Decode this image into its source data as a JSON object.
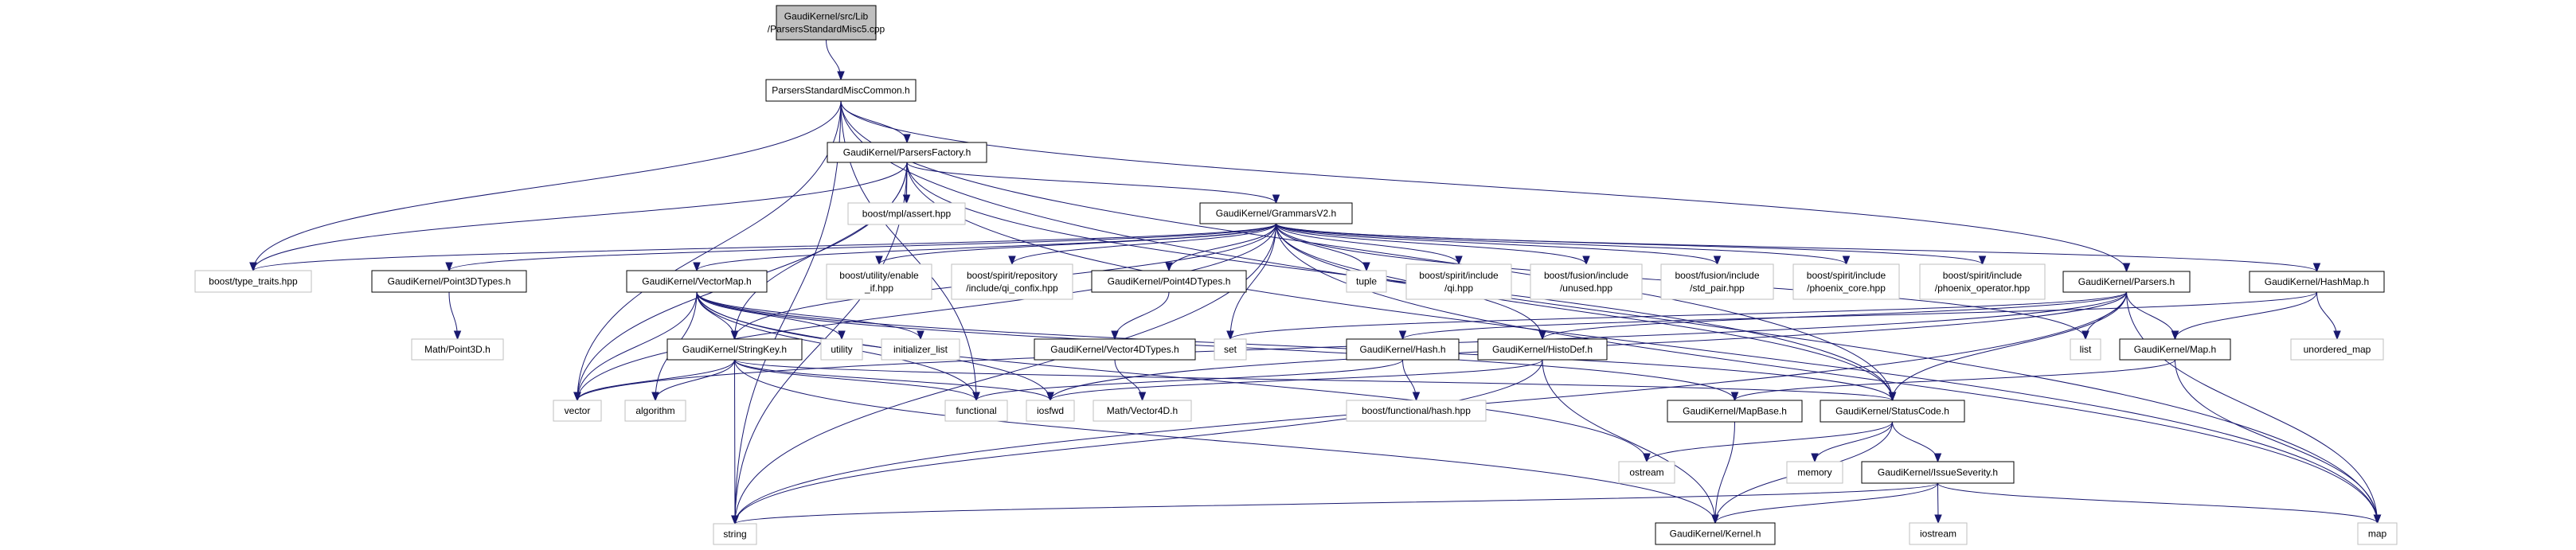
{
  "graph": {
    "edge_color": "#191970",
    "nodes": [
      {
        "id": "root",
        "label": [
          "GaudiKernel/src/Lib",
          "/ParsersStandardMisc5.cpp"
        ],
        "kind": "root"
      },
      {
        "id": "psmc",
        "label": [
          "ParsersStandardMiscCommon.h"
        ],
        "kind": "doc"
      },
      {
        "id": "pfactory",
        "label": [
          "GaudiKernel/ParsersFactory.h"
        ],
        "kind": "doc"
      },
      {
        "id": "mplassert",
        "label": [
          "boost/mpl/assert.hpp"
        ],
        "kind": "ext"
      },
      {
        "id": "grammars",
        "label": [
          "GaudiKernel/GrammarsV2.h"
        ],
        "kind": "doc"
      },
      {
        "id": "typetraits",
        "label": [
          "boost/type_traits.hpp"
        ],
        "kind": "ext"
      },
      {
        "id": "p3dtypes",
        "label": [
          "GaudiKernel/Point3DTypes.h"
        ],
        "kind": "doc"
      },
      {
        "id": "vectormap",
        "label": [
          "GaudiKernel/VectorMap.h"
        ],
        "kind": "doc"
      },
      {
        "id": "enableif",
        "label": [
          "boost/utility/enable",
          "_if.hpp"
        ],
        "kind": "ext"
      },
      {
        "id": "confix",
        "label": [
          "boost/spirit/repository",
          "/include/qi_confix.hpp"
        ],
        "kind": "ext"
      },
      {
        "id": "p4dtypes",
        "label": [
          "GaudiKernel/Point4DTypes.h"
        ],
        "kind": "doc"
      },
      {
        "id": "tuple",
        "label": [
          "tuple"
        ],
        "kind": "ext"
      },
      {
        "id": "qi",
        "label": [
          "boost/spirit/include",
          "/qi.hpp"
        ],
        "kind": "ext"
      },
      {
        "id": "unused",
        "label": [
          "boost/fusion/include",
          "/unused.hpp"
        ],
        "kind": "ext"
      },
      {
        "id": "stdpair",
        "label": [
          "boost/fusion/include",
          "/std_pair.hpp"
        ],
        "kind": "ext"
      },
      {
        "id": "phcore",
        "label": [
          "boost/spirit/include",
          "/phoenix_core.hpp"
        ],
        "kind": "ext"
      },
      {
        "id": "phop",
        "label": [
          "boost/spirit/include",
          "/phoenix_operator.hpp"
        ],
        "kind": "ext"
      },
      {
        "id": "parsers",
        "label": [
          "GaudiKernel/Parsers.h"
        ],
        "kind": "doc"
      },
      {
        "id": "hashmap",
        "label": [
          "GaudiKernel/HashMap.h"
        ],
        "kind": "doc"
      },
      {
        "id": "point3d",
        "label": [
          "Math/Point3D.h"
        ],
        "kind": "ext"
      },
      {
        "id": "stringkey",
        "label": [
          "GaudiKernel/StringKey.h"
        ],
        "kind": "doc"
      },
      {
        "id": "utility",
        "label": [
          "utility"
        ],
        "kind": "ext"
      },
      {
        "id": "initlist",
        "label": [
          "initializer_list"
        ],
        "kind": "ext"
      },
      {
        "id": "v4dtypes",
        "label": [
          "GaudiKernel/Vector4DTypes.h"
        ],
        "kind": "doc"
      },
      {
        "id": "set",
        "label": [
          "set"
        ],
        "kind": "ext"
      },
      {
        "id": "hash",
        "label": [
          "GaudiKernel/Hash.h"
        ],
        "kind": "doc"
      },
      {
        "id": "histodef",
        "label": [
          "GaudiKernel/HistoDef.h"
        ],
        "kind": "doc"
      },
      {
        "id": "list",
        "label": [
          "list"
        ],
        "kind": "ext"
      },
      {
        "id": "map_h",
        "label": [
          "GaudiKernel/Map.h"
        ],
        "kind": "doc"
      },
      {
        "id": "umap",
        "label": [
          "unordered_map"
        ],
        "kind": "ext"
      },
      {
        "id": "vector",
        "label": [
          "vector"
        ],
        "kind": "ext"
      },
      {
        "id": "algorithm",
        "label": [
          "algorithm"
        ],
        "kind": "ext"
      },
      {
        "id": "functional",
        "label": [
          "functional"
        ],
        "kind": "ext"
      },
      {
        "id": "iosfwd",
        "label": [
          "iosfwd"
        ],
        "kind": "ext"
      },
      {
        "id": "vector4d",
        "label": [
          "Math/Vector4D.h"
        ],
        "kind": "ext"
      },
      {
        "id": "bfhash",
        "label": [
          "boost/functional/hash.hpp"
        ],
        "kind": "ext"
      },
      {
        "id": "mapbase",
        "label": [
          "GaudiKernel/MapBase.h"
        ],
        "kind": "doc"
      },
      {
        "id": "statuscode",
        "label": [
          "GaudiKernel/StatusCode.h"
        ],
        "kind": "doc"
      },
      {
        "id": "ostream",
        "label": [
          "ostream"
        ],
        "kind": "ext"
      },
      {
        "id": "memory",
        "label": [
          "memory"
        ],
        "kind": "ext"
      },
      {
        "id": "severity",
        "label": [
          "GaudiKernel/IssueSeverity.h"
        ],
        "kind": "doc"
      },
      {
        "id": "string",
        "label": [
          "string"
        ],
        "kind": "ext"
      },
      {
        "id": "kernel",
        "label": [
          "GaudiKernel/Kernel.h"
        ],
        "kind": "doc"
      },
      {
        "id": "iostream",
        "label": [
          "iostream"
        ],
        "kind": "ext"
      },
      {
        "id": "map",
        "label": [
          "map"
        ],
        "kind": "ext"
      }
    ],
    "edges": [
      [
        "root",
        "psmc"
      ],
      [
        "psmc",
        "pfactory"
      ],
      [
        "psmc",
        "string"
      ],
      [
        "psmc",
        "vector"
      ],
      [
        "psmc",
        "typetraits"
      ],
      [
        "psmc",
        "functional"
      ],
      [
        "psmc",
        "map"
      ],
      [
        "psmc",
        "statuscode"
      ],
      [
        "psmc",
        "parsers"
      ],
      [
        "pfactory",
        "mplassert"
      ],
      [
        "pfactory",
        "grammars"
      ],
      [
        "pfactory",
        "typetraits"
      ],
      [
        "pfactory",
        "string"
      ],
      [
        "pfactory",
        "vector"
      ],
      [
        "pfactory",
        "stringkey"
      ],
      [
        "pfactory",
        "map"
      ],
      [
        "pfactory",
        "statuscode"
      ],
      [
        "grammars",
        "typetraits"
      ],
      [
        "grammars",
        "p3dtypes"
      ],
      [
        "grammars",
        "vectormap"
      ],
      [
        "grammars",
        "enableif"
      ],
      [
        "grammars",
        "confix"
      ],
      [
        "grammars",
        "p4dtypes"
      ],
      [
        "grammars",
        "set"
      ],
      [
        "grammars",
        "tuple"
      ],
      [
        "grammars",
        "qi"
      ],
      [
        "grammars",
        "unused"
      ],
      [
        "grammars",
        "stdpair"
      ],
      [
        "grammars",
        "phcore"
      ],
      [
        "grammars",
        "phop"
      ],
      [
        "grammars",
        "hashmap"
      ],
      [
        "grammars",
        "histodef"
      ],
      [
        "grammars",
        "statuscode"
      ],
      [
        "grammars",
        "string"
      ],
      [
        "grammars",
        "vector"
      ],
      [
        "grammars",
        "list"
      ],
      [
        "grammars",
        "map"
      ],
      [
        "grammars",
        "stringkey"
      ],
      [
        "p3dtypes",
        "point3d"
      ],
      [
        "p4dtypes",
        "v4dtypes"
      ],
      [
        "v4dtypes",
        "vector4d"
      ],
      [
        "vectormap",
        "stringkey"
      ],
      [
        "vectormap",
        "vector"
      ],
      [
        "vectormap",
        "algorithm"
      ],
      [
        "vectormap",
        "utility"
      ],
      [
        "vectormap",
        "initlist"
      ],
      [
        "vectormap",
        "functional"
      ],
      [
        "vectormap",
        "iosfwd"
      ],
      [
        "vectormap",
        "ostream"
      ],
      [
        "vectormap",
        "mapbase"
      ],
      [
        "vectormap",
        "statuscode"
      ],
      [
        "stringkey",
        "vector"
      ],
      [
        "stringkey",
        "algorithm"
      ],
      [
        "stringkey",
        "string"
      ],
      [
        "stringkey",
        "functional"
      ],
      [
        "stringkey",
        "iosfwd"
      ],
      [
        "stringkey",
        "kernel"
      ],
      [
        "stringkey",
        "statuscode"
      ],
      [
        "parsers",
        "set"
      ],
      [
        "parsers",
        "vector"
      ],
      [
        "parsers",
        "string"
      ],
      [
        "parsers",
        "list"
      ],
      [
        "parsers",
        "map_h"
      ],
      [
        "parsers",
        "statuscode"
      ],
      [
        "parsers",
        "map"
      ],
      [
        "parsers",
        "histodef"
      ],
      [
        "parsers",
        "iosfwd"
      ],
      [
        "hashmap",
        "map_h"
      ],
      [
        "hashmap",
        "umap"
      ],
      [
        "hashmap",
        "hash"
      ],
      [
        "map_h",
        "mapbase"
      ],
      [
        "map_h",
        "map"
      ],
      [
        "hash",
        "functional"
      ],
      [
        "hash",
        "bfhash"
      ],
      [
        "histodef",
        "iosfwd"
      ],
      [
        "histodef",
        "string"
      ],
      [
        "histodef",
        "kernel"
      ],
      [
        "mapbase",
        "kernel"
      ],
      [
        "statuscode",
        "ostream"
      ],
      [
        "statuscode",
        "memory"
      ],
      [
        "statuscode",
        "severity"
      ],
      [
        "statuscode",
        "kernel"
      ],
      [
        "severity",
        "string"
      ],
      [
        "severity",
        "kernel"
      ],
      [
        "severity",
        "iostream"
      ],
      [
        "severity",
        "map"
      ]
    ]
  }
}
